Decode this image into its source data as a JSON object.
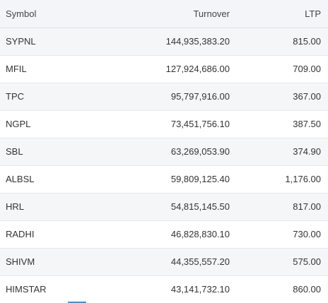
{
  "table": {
    "headers": {
      "symbol": "Symbol",
      "turnover": "Turnover",
      "ltp": "LTP"
    },
    "rows": [
      {
        "symbol": "SYPNL",
        "turnover": "144,935,383.20",
        "ltp": "815.00"
      },
      {
        "symbol": "MFIL",
        "turnover": "127,924,686.00",
        "ltp": "709.00"
      },
      {
        "symbol": "TPC",
        "turnover": "95,797,916.00",
        "ltp": "367.00"
      },
      {
        "symbol": "NGPL",
        "turnover": "73,451,756.10",
        "ltp": "387.50"
      },
      {
        "symbol": "SBL",
        "turnover": "63,269,053.90",
        "ltp": "374.90"
      },
      {
        "symbol": "ALBSL",
        "turnover": "59,809,125.40",
        "ltp": "1,176.00"
      },
      {
        "symbol": "HRL",
        "turnover": "54,815,145.50",
        "ltp": "817.00"
      },
      {
        "symbol": "RADHI",
        "turnover": "46,828,830.10",
        "ltp": "730.00"
      },
      {
        "symbol": "SHIVM",
        "turnover": "44,355,557.20",
        "ltp": "575.00"
      },
      {
        "symbol": "HIMSTAR",
        "turnover": "43,141,732.10",
        "ltp": "860.00"
      }
    ]
  },
  "colors": {
    "header_bg": "#f3f5f8",
    "row_alt_bg": "#f5f6f8",
    "accent": "#4a90c8"
  }
}
